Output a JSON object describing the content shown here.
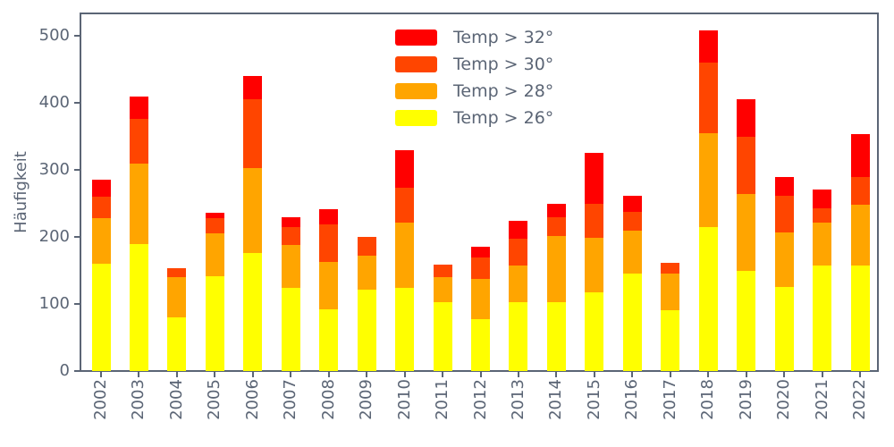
{
  "chart_data": {
    "type": "bar",
    "stacked": true,
    "title": "",
    "xlabel": "",
    "ylabel": "Häufigkeit",
    "categories": [
      "2002",
      "2003",
      "2004",
      "2005",
      "2006",
      "2007",
      "2008",
      "2009",
      "2010",
      "2011",
      "2012",
      "2013",
      "2014",
      "2015",
      "2016",
      "2017",
      "2018",
      "2019",
      "2020",
      "2021",
      "2022"
    ],
    "series": [
      {
        "name": "Temp > 26°",
        "color": "#FFFF00",
        "values": [
          160,
          190,
          80,
          141,
          176,
          124,
          92,
          122,
          124,
          103,
          78,
          103,
          103,
          117,
          145,
          91,
          215,
          150,
          126,
          158,
          157
        ]
      },
      {
        "name": "Temp > 28°",
        "color": "#FFA500",
        "values": [
          68,
          120,
          60,
          65,
          127,
          64,
          71,
          50,
          98,
          37,
          60,
          55,
          98,
          82,
          64,
          55,
          140,
          114,
          81,
          63,
          91
        ]
      },
      {
        "name": "Temp > 30°",
        "color": "#FF4500",
        "values": [
          32,
          66,
          13,
          22,
          102,
          27,
          56,
          28,
          52,
          19,
          32,
          40,
          28,
          51,
          28,
          16,
          105,
          86,
          55,
          22,
          41
        ]
      },
      {
        "name": "Temp > 32°",
        "color": "#FF0000",
        "values": [
          25,
          33,
          0,
          8,
          35,
          15,
          23,
          0,
          56,
          0,
          15,
          26,
          21,
          75,
          25,
          0,
          48,
          55,
          28,
          28,
          64
        ]
      }
    ],
    "legend": {
      "position": "upper center",
      "frame": false,
      "entries": [
        {
          "label": "Temp > 32°",
          "color": "#FF0000"
        },
        {
          "label": "Temp > 30°",
          "color": "#FF4500"
        },
        {
          "label": "Temp > 28°",
          "color": "#FFA500"
        },
        {
          "label": "Temp > 26°",
          "color": "#FFFF00"
        }
      ]
    },
    "y_ticks": [
      0,
      100,
      200,
      300,
      400,
      500
    ],
    "ylim": [
      0,
      533
    ],
    "x_tick_rotation": 90,
    "grid": false,
    "axis_color": "#5b6575"
  }
}
